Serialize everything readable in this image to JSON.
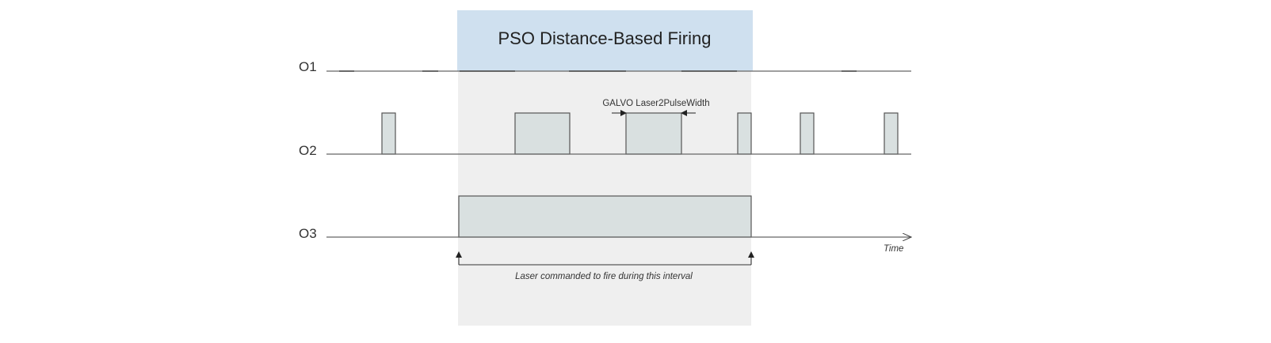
{
  "header": {
    "title": "PSO Distance-Based Firing"
  },
  "signals": [
    {
      "label": "O1"
    },
    {
      "label": "O2"
    },
    {
      "label": "O3"
    }
  ],
  "annotations": {
    "pulse_width": "GALVO Laser2PulseWidth",
    "axis": "Time",
    "interval": "Laser commanded to fire during this interval"
  }
}
